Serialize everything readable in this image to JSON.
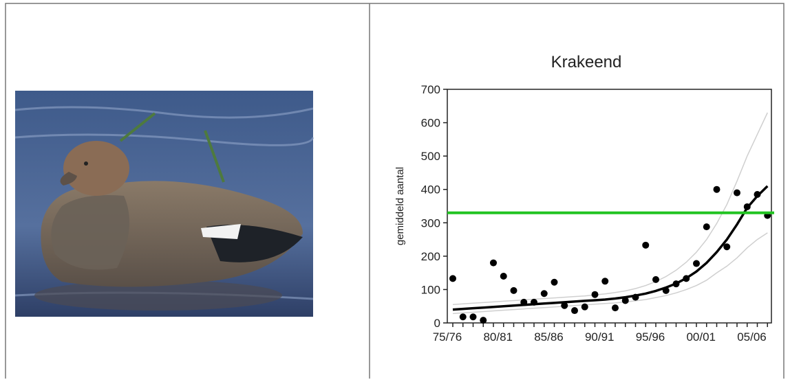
{
  "chart_data": {
    "type": "scatter",
    "title": "Krakeend",
    "y_label": "gemiddeld aantal",
    "categories": [
      "75/76",
      null,
      null,
      null,
      null,
      "80/81",
      null,
      null,
      null,
      null,
      "85/86",
      null,
      null,
      null,
      null,
      "90/91",
      null,
      null,
      null,
      null,
      "95/96",
      null,
      null,
      null,
      null,
      "00/01",
      null,
      null,
      null,
      null,
      "05/06",
      null
    ],
    "series": [
      {
        "type": "scatter",
        "color": "#000000",
        "values": [
          133,
          18,
          18,
          8,
          180,
          140,
          97,
          62,
          62,
          88,
          122,
          52,
          37,
          48,
          85,
          125,
          45,
          67,
          77,
          233,
          130,
          97,
          117,
          133,
          178,
          288,
          400,
          228,
          390,
          348,
          385,
          322
        ]
      },
      {
        "type": "line",
        "color": "#000000",
        "values": [
          40,
          42,
          44,
          46,
          48,
          50,
          52,
          54,
          56,
          58,
          60,
          62,
          64,
          66,
          68,
          70,
          73,
          77,
          82,
          88,
          96,
          106,
          118,
          134,
          154,
          180,
          212,
          250,
          295,
          345,
          380,
          410
        ]
      },
      {
        "type": "line",
        "color": "#cfcfcf",
        "values": [
          55,
          57,
          59,
          61,
          63,
          65,
          67,
          69,
          71,
          73,
          75,
          77,
          79,
          81,
          84,
          87,
          91,
          96,
          103,
          112,
          124,
          139,
          158,
          182,
          212,
          250,
          298,
          355,
          425,
          500,
          565,
          630
        ]
      },
      {
        "type": "line",
        "color": "#cfcfcf",
        "values": [
          28,
          30,
          32,
          34,
          36,
          38,
          40,
          42,
          44,
          46,
          48,
          50,
          52,
          54,
          56,
          58,
          60,
          63,
          66,
          70,
          76,
          82,
          90,
          100,
          112,
          128,
          150,
          170,
          195,
          225,
          250,
          270
        ]
      }
    ],
    "reference_line": {
      "value": 330,
      "color": "#22c422"
    },
    "ylim": [
      0,
      700
    ],
    "yticks": [
      0,
      100,
      200,
      300,
      400,
      500,
      600,
      700
    ],
    "grid": false
  }
}
